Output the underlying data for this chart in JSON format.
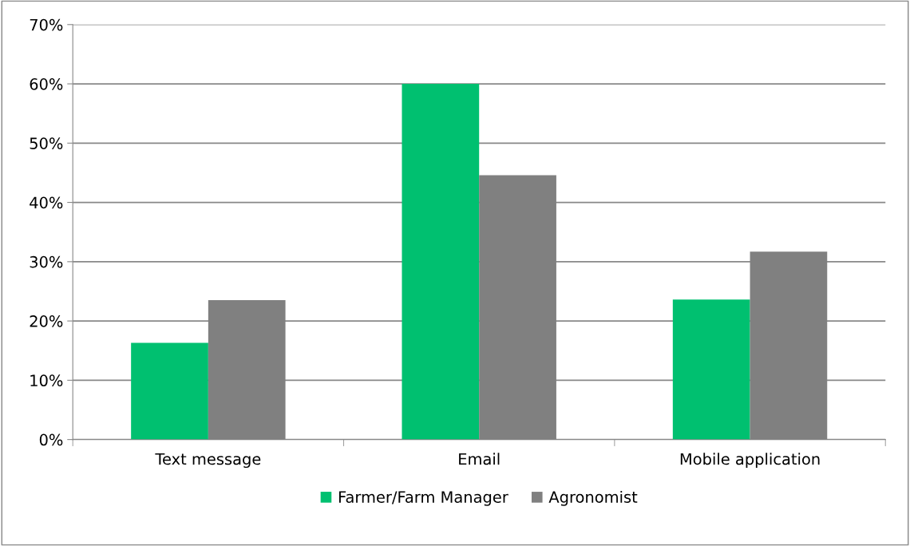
{
  "chart_data": {
    "type": "bar",
    "categories": [
      "Text message",
      "Email",
      "Mobile application"
    ],
    "series": [
      {
        "name": "Farmer/Farm Manager",
        "color": "#00c070",
        "values": [
          16.3,
          60.0,
          23.6
        ]
      },
      {
        "name": "Agronomist",
        "color": "#808080",
        "values": [
          23.5,
          44.6,
          31.7
        ]
      }
    ],
    "ylim": [
      0,
      70
    ],
    "yticks": [
      {
        "value": 0,
        "label": "0%"
      },
      {
        "value": 10,
        "label": "10%"
      },
      {
        "value": 20,
        "label": "20%"
      },
      {
        "value": 30,
        "label": "30%"
      },
      {
        "value": 40,
        "label": "40%"
      },
      {
        "value": 50,
        "label": "50%"
      },
      {
        "value": 60,
        "label": "60%"
      },
      {
        "value": 70,
        "label": "70%"
      }
    ],
    "grid": "y",
    "legend": "bottom"
  }
}
